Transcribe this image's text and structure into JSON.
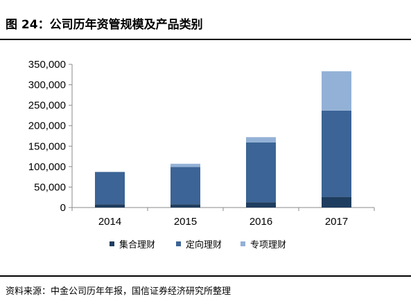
{
  "header": {
    "title": "图 24：公司历年资管规模及产品类别"
  },
  "source": {
    "text": "资料来源：中金公司历年年报，国信证券经济研究所整理"
  },
  "colors": {
    "集合理财": "#1f3d5e",
    "定向理财": "#3c6496",
    "专项理财": "#93b1d6"
  },
  "chart_data": {
    "type": "bar",
    "stacked": true,
    "categories": [
      "2014",
      "2015",
      "2016",
      "2017"
    ],
    "series": [
      {
        "name": "集合理财",
        "values": [
          8000,
          8000,
          13000,
          26000
        ]
      },
      {
        "name": "定向理财",
        "values": [
          79000,
          91000,
          146000,
          211000
        ]
      },
      {
        "name": "专项理财",
        "values": [
          0,
          8000,
          13000,
          96000
        ]
      }
    ],
    "ylim": [
      0,
      350000
    ],
    "yticks": [
      "0",
      "50,000",
      "100,000",
      "150,000",
      "200,000",
      "250,000",
      "300,000",
      "350,000"
    ],
    "ytick_values": [
      0,
      50000,
      100000,
      150000,
      200000,
      250000,
      300000,
      350000
    ],
    "legend_position": "bottom",
    "grid": false
  }
}
